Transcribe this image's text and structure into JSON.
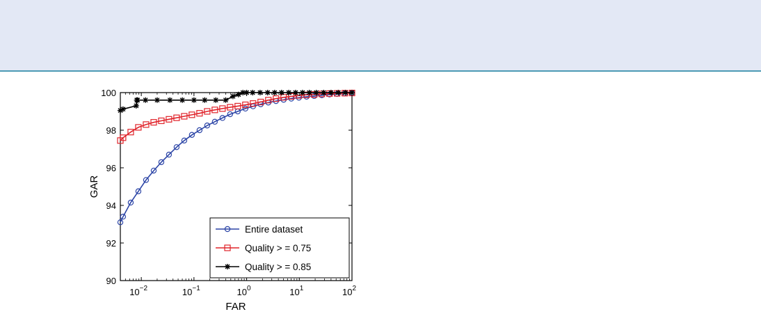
{
  "chart_data": {
    "type": "line",
    "xlabel": "FAR",
    "ylabel": "GAR",
    "xscale": "log",
    "xlim": [
      0.004,
      100
    ],
    "ylim": [
      90,
      100
    ],
    "x_ticks": [
      {
        "value": 0.01,
        "base": "10",
        "exp": "−2"
      },
      {
        "value": 0.1,
        "base": "10",
        "exp": "−1"
      },
      {
        "value": 1,
        "base": "10",
        "exp": "0"
      },
      {
        "value": 10,
        "base": "10",
        "exp": "1"
      },
      {
        "value": 100,
        "base": "10",
        "exp": "2"
      }
    ],
    "y_ticks": [
      90,
      92,
      94,
      96,
      98,
      100
    ],
    "grid": false,
    "legend_position": "bottom-right",
    "series": [
      {
        "name": "Entire dataset",
        "color": "#2b44a6",
        "marker": "circle",
        "x": [
          0.004,
          0.0045,
          0.0063,
          0.0088,
          0.0123,
          0.0172,
          0.024,
          0.0335,
          0.0468,
          0.0654,
          0.0913,
          0.1276,
          0.1782,
          0.2489,
          0.3476,
          0.4856,
          0.6782,
          0.9473,
          1.323,
          1.848,
          2.582,
          3.606,
          5.037,
          7.035,
          9.826,
          13.72,
          19.17,
          26.77,
          37.4,
          52.23,
          72.96,
          100
        ],
        "y": [
          93.1,
          93.4,
          94.15,
          94.75,
          95.35,
          95.85,
          96.3,
          96.7,
          97.1,
          97.45,
          97.75,
          98.0,
          98.25,
          98.45,
          98.65,
          98.85,
          99.0,
          99.15,
          99.27,
          99.38,
          99.47,
          99.55,
          99.62,
          99.68,
          99.73,
          99.78,
          99.82,
          99.86,
          99.9,
          99.93,
          99.96,
          99.98
        ]
      },
      {
        "name": "Quality > = 0.75",
        "color": "#e0232a",
        "marker": "square",
        "x": [
          0.004,
          0.0045,
          0.0063,
          0.0088,
          0.0123,
          0.0172,
          0.024,
          0.0335,
          0.0468,
          0.0654,
          0.0913,
          0.1276,
          0.1782,
          0.2489,
          0.3476,
          0.4856,
          0.6782,
          0.9473,
          1.323,
          1.848,
          2.582,
          3.606,
          5.037,
          7.035,
          9.826,
          13.72,
          19.17,
          26.77,
          37.4,
          52.23,
          72.96,
          100
        ],
        "y": [
          97.45,
          97.6,
          97.9,
          98.15,
          98.3,
          98.42,
          98.5,
          98.58,
          98.66,
          98.74,
          98.82,
          98.9,
          99.0,
          99.08,
          99.15,
          99.22,
          99.28,
          99.35,
          99.42,
          99.5,
          99.6,
          99.68,
          99.75,
          99.8,
          99.85,
          99.88,
          99.9,
          99.93,
          99.95,
          99.96,
          99.97,
          99.98
        ]
      },
      {
        "name": "Quality > = 0.85",
        "color": "#000000",
        "marker": "star",
        "x": [
          0.004,
          0.0045,
          0.008,
          0.0082,
          0.0085,
          0.012,
          0.02,
          0.035,
          0.06,
          0.1,
          0.16,
          0.26,
          0.4,
          0.55,
          0.7,
          0.85,
          1.0,
          1.3,
          1.8,
          2.5,
          3.4,
          4.6,
          6.3,
          8.5,
          11.5,
          15.5,
          21,
          29,
          40,
          55,
          75,
          100
        ],
        "y": [
          99.05,
          99.12,
          99.3,
          99.6,
          99.6,
          99.6,
          99.6,
          99.6,
          99.6,
          99.6,
          99.6,
          99.6,
          99.6,
          99.8,
          99.9,
          100,
          100,
          100,
          100,
          100,
          100,
          100,
          100,
          100,
          100,
          100,
          100,
          100,
          100,
          100,
          100,
          100
        ]
      }
    ]
  }
}
